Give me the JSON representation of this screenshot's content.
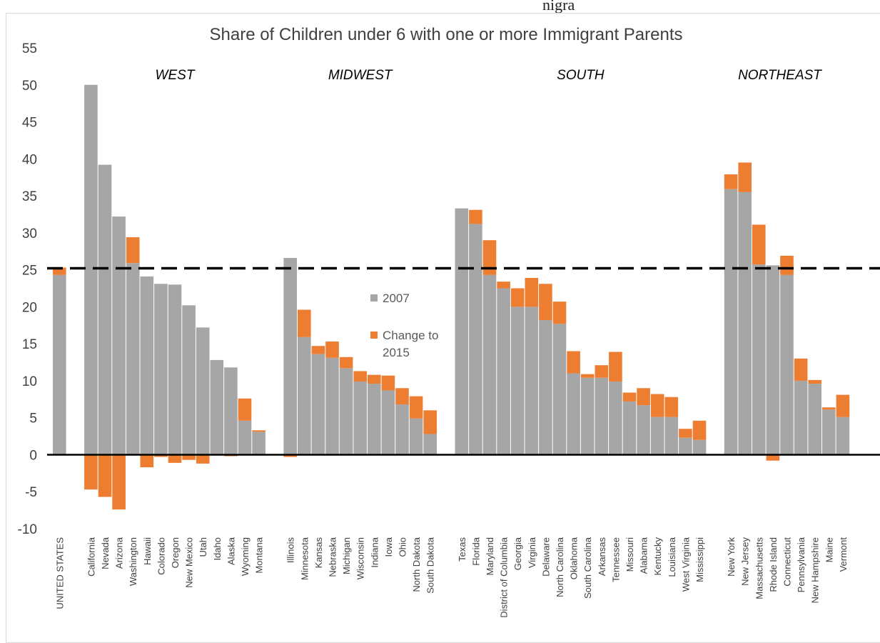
{
  "page_header_fragment": "nigra",
  "chart_data": {
    "type": "bar",
    "stacked": true,
    "title": "Share of Children under 6 with one or more Immigrant Parents",
    "xlabel": "",
    "ylabel": "",
    "ylim": [
      -10,
      55
    ],
    "yticks": [
      -10,
      -5,
      0,
      5,
      10,
      15,
      20,
      25,
      30,
      35,
      40,
      45,
      50,
      55
    ],
    "grid": false,
    "legend": "inside, center",
    "reference_line": 25.2,
    "colors": {
      "base": "#a6a6a6",
      "change": "#ed7d31",
      "reference": "#000000"
    },
    "regions": [
      "WEST",
      "MIDWEST",
      "SOUTH",
      "NORTHEAST"
    ],
    "series": [
      {
        "name": "2007",
        "color": "#a6a6a6"
      },
      {
        "name": "Change to 2015",
        "color": "#ed7d31"
      }
    ],
    "categories": [
      {
        "name": "UNITED STATES",
        "group": "",
        "base": 24.3,
        "change": 1.0
      },
      {
        "name": "California",
        "group": "WEST",
        "base": 50.0,
        "change": -4.7
      },
      {
        "name": "Nevada",
        "group": "WEST",
        "base": 39.2,
        "change": -5.7
      },
      {
        "name": "Arizona",
        "group": "WEST",
        "base": 32.2,
        "change": -7.4
      },
      {
        "name": "Washington",
        "group": "WEST",
        "base": 25.9,
        "change": 3.5
      },
      {
        "name": "Hawaii",
        "group": "WEST",
        "base": 24.1,
        "change": -1.7
      },
      {
        "name": "Colorado",
        "group": "WEST",
        "base": 23.1,
        "change": -0.3
      },
      {
        "name": "Oregon",
        "group": "WEST",
        "base": 23.0,
        "change": -1.1
      },
      {
        "name": "New Mexico",
        "group": "WEST",
        "base": 20.2,
        "change": -0.7
      },
      {
        "name": "Utah",
        "group": "WEST",
        "base": 17.2,
        "change": -1.2
      },
      {
        "name": "Idaho",
        "group": "WEST",
        "base": 12.8,
        "change": 0
      },
      {
        "name": "Alaska",
        "group": "WEST",
        "base": 11.8,
        "change": -0.2
      },
      {
        "name": "Wyoming",
        "group": "WEST",
        "base": 4.6,
        "change": 3.0
      },
      {
        "name": "Montana",
        "group": "WEST",
        "base": 3.1,
        "change": 0.2
      },
      {
        "name": "Illinois",
        "group": "MIDWEST",
        "base": 26.6,
        "change": -0.3
      },
      {
        "name": "Minnesota",
        "group": "MIDWEST",
        "base": 15.9,
        "change": 3.7
      },
      {
        "name": "Kansas",
        "group": "MIDWEST",
        "base": 13.6,
        "change": 1.1
      },
      {
        "name": "Nebraska",
        "group": "MIDWEST",
        "base": 13.1,
        "change": 2.2
      },
      {
        "name": "Michigan",
        "group": "MIDWEST",
        "base": 11.7,
        "change": 1.5
      },
      {
        "name": "Wisconsin",
        "group": "MIDWEST",
        "base": 9.9,
        "change": 1.4
      },
      {
        "name": "Indiana",
        "group": "MIDWEST",
        "base": 9.6,
        "change": 1.2
      },
      {
        "name": "Iowa",
        "group": "MIDWEST",
        "base": 8.7,
        "change": 2.0
      },
      {
        "name": "Ohio",
        "group": "MIDWEST",
        "base": 6.8,
        "change": 2.2
      },
      {
        "name": "North Dakota",
        "group": "MIDWEST",
        "base": 4.9,
        "change": 3.0
      },
      {
        "name": "South Dakota",
        "group": "MIDWEST",
        "base": 2.8,
        "change": 3.2
      },
      {
        "name": "Texas",
        "group": "SOUTH",
        "base": 33.3,
        "change": 0
      },
      {
        "name": "Florida",
        "group": "SOUTH",
        "base": 31.2,
        "change": 1.9
      },
      {
        "name": "Maryland",
        "group": "SOUTH",
        "base": 24.3,
        "change": 4.7
      },
      {
        "name": "District of Columbia",
        "group": "SOUTH",
        "base": 22.5,
        "change": 0.9
      },
      {
        "name": "Georgia",
        "group": "SOUTH",
        "base": 20.0,
        "change": 2.5
      },
      {
        "name": "Virginia",
        "group": "SOUTH",
        "base": 20.0,
        "change": 3.9
      },
      {
        "name": "Delaware",
        "group": "SOUTH",
        "base": 18.2,
        "change": 4.9
      },
      {
        "name": "North Carolina",
        "group": "SOUTH",
        "base": 17.7,
        "change": 3.0
      },
      {
        "name": "Oklahoma",
        "group": "SOUTH",
        "base": 11.0,
        "change": 3.0
      },
      {
        "name": "South Carolina",
        "group": "SOUTH",
        "base": 10.4,
        "change": 0.5
      },
      {
        "name": "Arkansas",
        "group": "SOUTH",
        "base": 10.4,
        "change": 1.7
      },
      {
        "name": "Tennessee",
        "group": "SOUTH",
        "base": 9.9,
        "change": 4.0
      },
      {
        "name": "Missouri",
        "group": "SOUTH",
        "base": 7.2,
        "change": 1.2
      },
      {
        "name": "Alabama",
        "group": "SOUTH",
        "base": 6.7,
        "change": 2.3
      },
      {
        "name": "Kentucky",
        "group": "SOUTH",
        "base": 5.1,
        "change": 3.1
      },
      {
        "name": "Louisiana",
        "group": "SOUTH",
        "base": 5.1,
        "change": 2.7
      },
      {
        "name": "West Virginia",
        "group": "SOUTH",
        "base": 2.3,
        "change": 1.2
      },
      {
        "name": "Mississippi",
        "group": "SOUTH",
        "base": 2.0,
        "change": 2.6
      },
      {
        "name": "New York",
        "group": "NORTHEAST",
        "base": 35.9,
        "change": 2.0
      },
      {
        "name": "New Jersey",
        "group": "NORTHEAST",
        "base": 35.5,
        "change": 4.0
      },
      {
        "name": "Massachusetts",
        "group": "NORTHEAST",
        "base": 25.7,
        "change": 5.4
      },
      {
        "name": "Rhode Island",
        "group": "NORTHEAST",
        "base": 25.6,
        "change": -0.8
      },
      {
        "name": "Connecticut",
        "group": "NORTHEAST",
        "base": 24.3,
        "change": 2.6
      },
      {
        "name": "Pennsylvania",
        "group": "NORTHEAST",
        "base": 10.0,
        "change": 3.0
      },
      {
        "name": "New Hampshire",
        "group": "NORTHEAST",
        "base": 9.6,
        "change": 0.5
      },
      {
        "name": "Maine",
        "group": "NORTHEAST",
        "base": 6.1,
        "change": 0.3
      },
      {
        "name": "Vermont",
        "group": "NORTHEAST",
        "base": 5.1,
        "change": 3.0
      }
    ]
  }
}
